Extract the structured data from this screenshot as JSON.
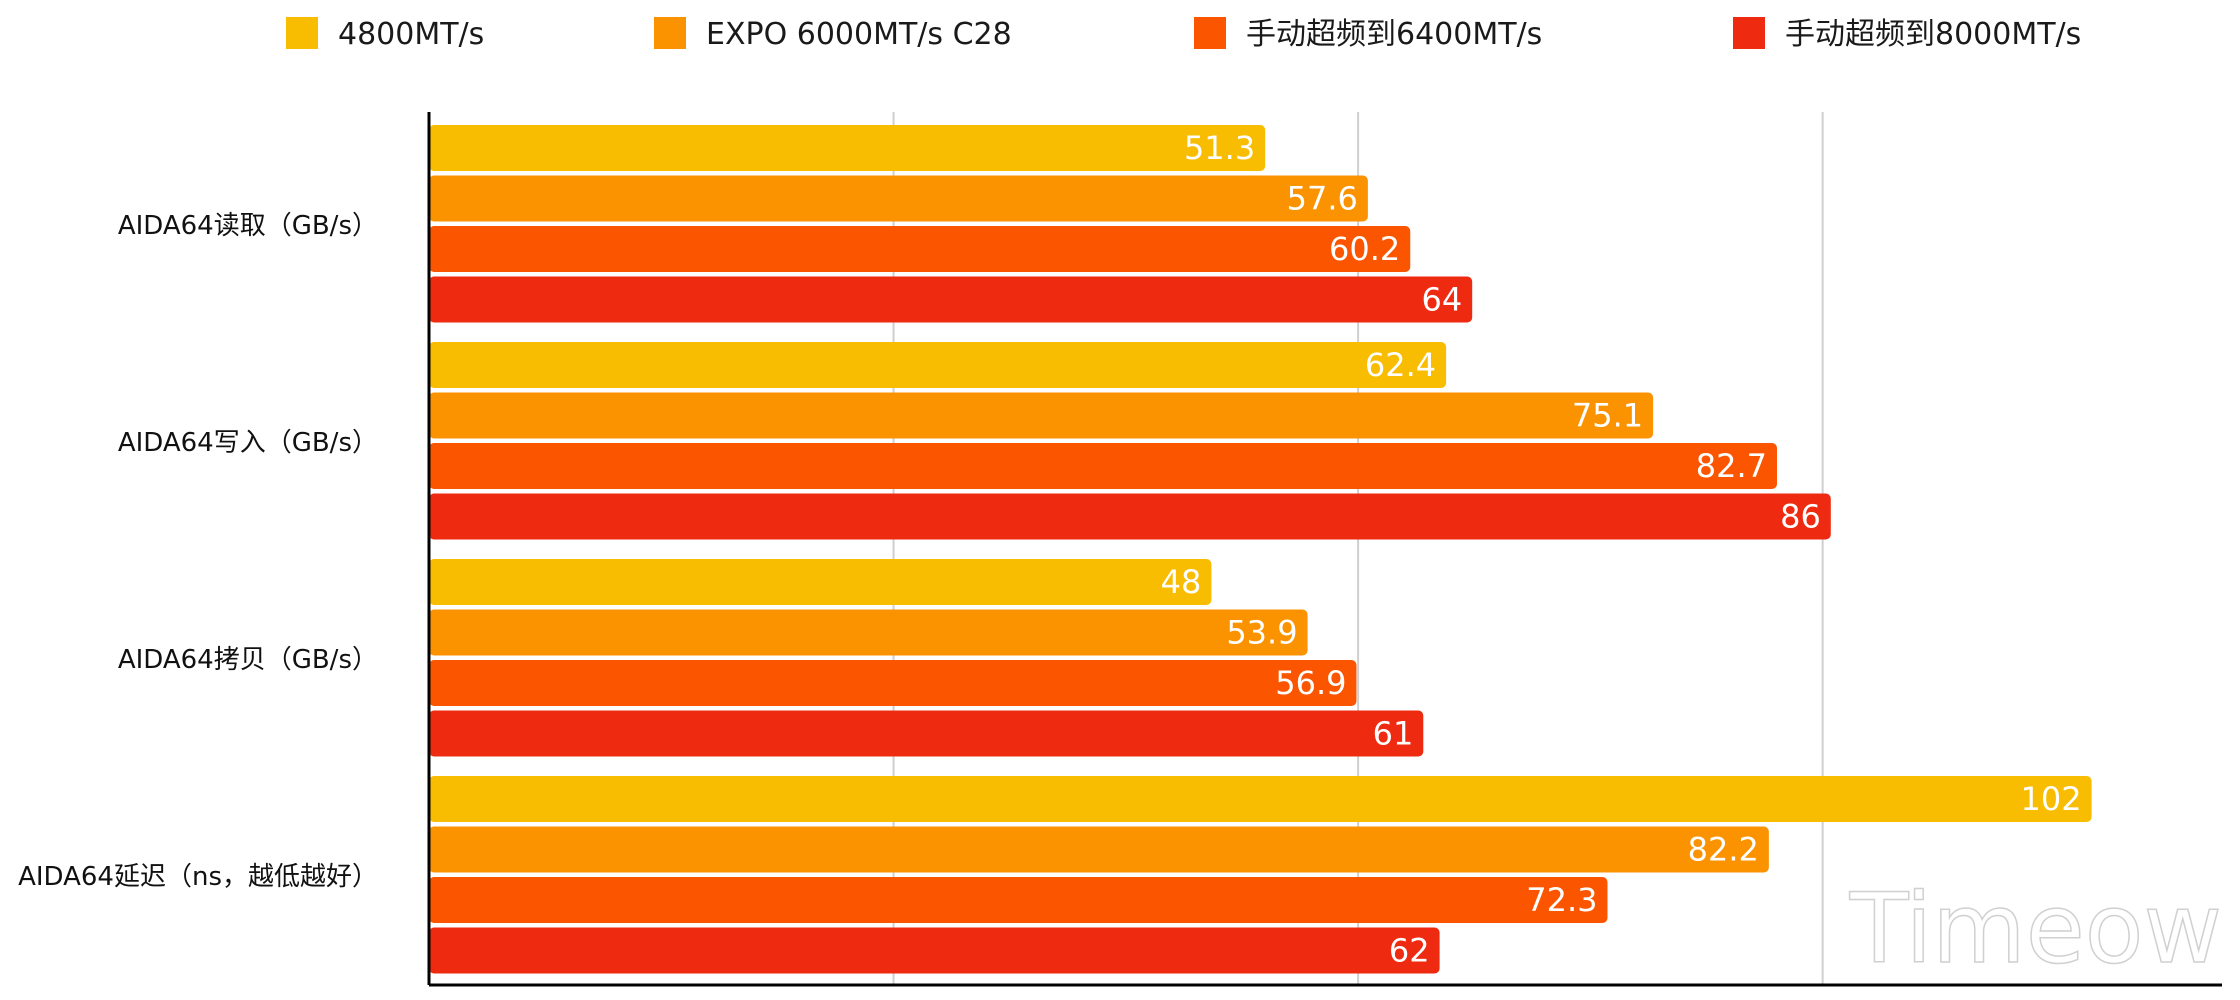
{
  "chart_data": {
    "type": "bar",
    "orientation": "horizontal",
    "categories": [
      "AIDA64读取（GB/s）",
      "AIDA64写入（GB/s）",
      "AIDA64拷贝（GB/s）",
      "AIDA64延迟（ns，越低越好）"
    ],
    "series": [
      {
        "name": "4800MT/s",
        "color": "#F8BC00",
        "values": [
          51.3,
          62.4,
          48,
          102
        ]
      },
      {
        "name": "EXPO 6000MT/s C28",
        "color": "#FB9200",
        "values": [
          57.6,
          75.1,
          53.9,
          82.2
        ]
      },
      {
        "name": "手动超频到6400MT/s",
        "color": "#FB5500",
        "values": [
          60.2,
          82.7,
          56.9,
          72.3
        ]
      },
      {
        "name": "手动超频到8000MT/s",
        "color": "#EE2A10",
        "values": [
          64,
          86,
          61,
          62
        ]
      }
    ],
    "xlim": [
      0,
      110
    ],
    "grid": true,
    "legend": "top",
    "title": "",
    "xlabel": "",
    "ylabel": ""
  },
  "watermark": "Timeow"
}
